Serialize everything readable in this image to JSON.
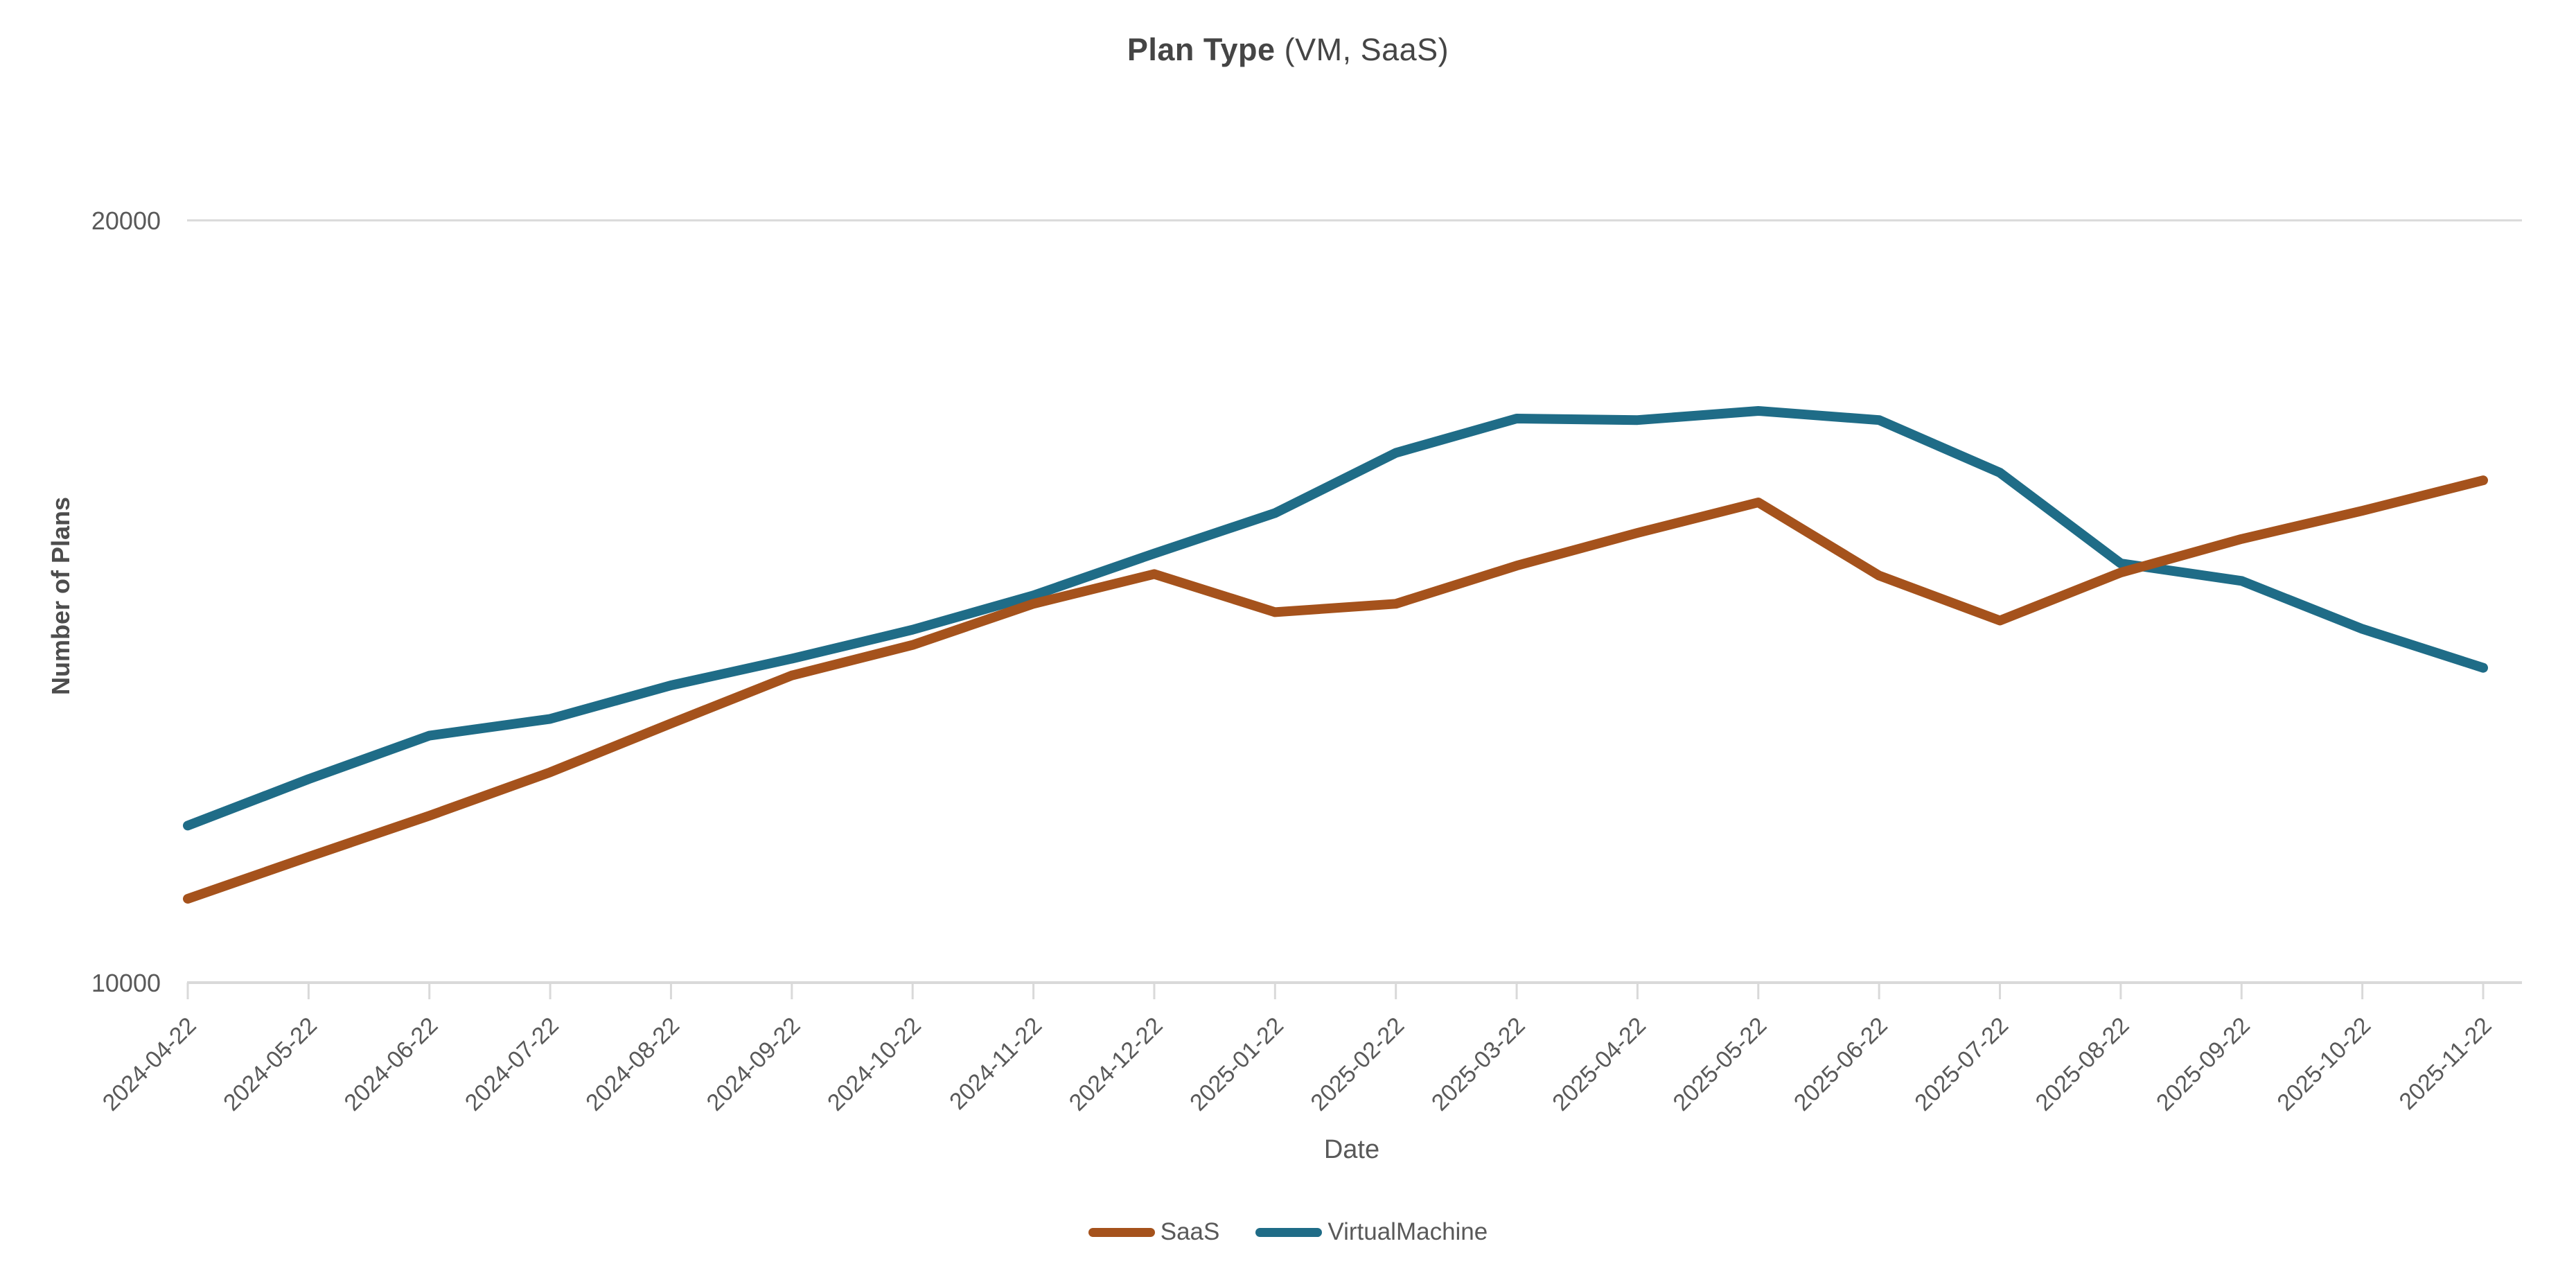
{
  "title": {
    "bold": "Plan Type",
    "rest": " (VM, SaaS)"
  },
  "axes": {
    "y_title": "Number of Plans",
    "x_title": "Date",
    "y_tick_labels": [
      "20000",
      "10000"
    ]
  },
  "legend": [
    {
      "label": "SaaS",
      "color": "#A5521C"
    },
    {
      "label": "VirtualMachine",
      "color": "#1F6C87"
    }
  ],
  "colors": {
    "grid": "#D9D9D9",
    "tick_text": "#595959",
    "title_text": "#454545"
  },
  "chart_data": {
    "type": "line",
    "title": "Plan Type (VM, SaaS)",
    "xlabel": "Date",
    "ylabel": "Number of Plans",
    "ylim": [
      10000,
      20000
    ],
    "y_gridlines": [
      10000,
      20000
    ],
    "grid": "horizontal-only",
    "legend_position": "bottom",
    "x_tick_rotation": -45,
    "categories": [
      "2024-04-22",
      "2024-05-22",
      "2024-06-22",
      "2024-07-22",
      "2024-08-22",
      "2024-09-22",
      "2024-10-22",
      "2024-11-22",
      "2024-12-22",
      "2025-01-22",
      "2025-02-22",
      "2025-03-22",
      "2025-04-22",
      "2025-05-22",
      "2025-06-22",
      "2025-07-22",
      "2025-08-22",
      "2025-09-22",
      "2025-10-22",
      "2025-11-22"
    ],
    "series": [
      {
        "name": "SaaS",
        "color": "#A5521C",
        "values": [
          11100,
          11650,
          12190,
          12760,
          13400,
          14030,
          14430,
          14970,
          15360,
          14860,
          14970,
          15470,
          15900,
          16300,
          15340,
          14750,
          15380,
          15820,
          16190,
          16590
        ]
      },
      {
        "name": "VirtualMachine",
        "color": "#1F6C87",
        "values": [
          12060,
          12670,
          13240,
          13460,
          13900,
          14250,
          14630,
          15080,
          15630,
          16160,
          16950,
          17400,
          17380,
          17500,
          17380,
          16690,
          15500,
          15270,
          14640,
          14130
        ]
      }
    ]
  }
}
